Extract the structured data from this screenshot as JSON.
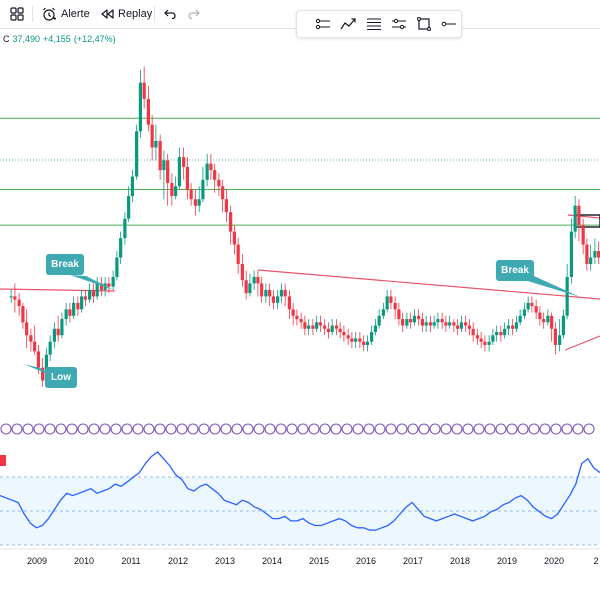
{
  "toolbar": {
    "grid_icon": "grid-icon",
    "alert_label": "Alerte",
    "replay_label": "Replay"
  },
  "drawing_tools": [
    {
      "name": "horizontal-ray-tool-icon"
    },
    {
      "name": "trend-tool-icon"
    },
    {
      "name": "fib-retracement-tool-icon"
    },
    {
      "name": "parallel-channel-tool-icon"
    },
    {
      "name": "rectangle-tool-icon"
    },
    {
      "name": "ray-line-tool-icon"
    }
  ],
  "price": {
    "label": "C",
    "close": "37,490",
    "change": "+4,155",
    "change_pct": "(+12,47%)"
  },
  "annotations": {
    "break_1": "Break",
    "low": "Low",
    "break_2": "Break"
  },
  "x_axis": {
    "labels": [
      "2009",
      "2010",
      "2011",
      "2012",
      "2013",
      "2014",
      "2015",
      "2016",
      "2017",
      "2018",
      "2019",
      "2020",
      "2"
    ]
  },
  "colors": {
    "up": "#089981",
    "down": "#f23645",
    "horizontal_lines": "#4caf50",
    "trendline": "#e8546a",
    "callout": "#3fa9b1",
    "oscillator": "#2962ff",
    "band": "#e3f2fd",
    "divider": "#7e57c2"
  },
  "chart_data": {
    "type": "candlestick",
    "x_range": [
      2008.4,
      2021.2
    ],
    "candles": [
      [
        2008.45,
        62,
        62,
        60,
        64
      ],
      [
        2008.53,
        62,
        61,
        57,
        66
      ],
      [
        2008.62,
        61,
        59,
        56,
        63
      ],
      [
        2008.7,
        59,
        54,
        52,
        60
      ],
      [
        2008.78,
        54,
        50,
        46,
        58
      ],
      [
        2008.87,
        50,
        48,
        45,
        52
      ],
      [
        2008.95,
        48,
        45,
        44,
        53
      ],
      [
        2009.03,
        45,
        40,
        38,
        47
      ],
      [
        2009.12,
        40,
        36,
        34,
        43
      ],
      [
        2009.2,
        36,
        44,
        35,
        46
      ],
      [
        2009.28,
        44,
        48,
        42,
        50
      ],
      [
        2009.37,
        48,
        52,
        46,
        54
      ],
      [
        2009.45,
        52,
        50,
        48,
        56
      ],
      [
        2009.53,
        50,
        55,
        49,
        57
      ],
      [
        2009.62,
        55,
        58,
        53,
        60
      ],
      [
        2009.7,
        58,
        56,
        54,
        60
      ],
      [
        2009.78,
        56,
        60,
        55,
        62
      ],
      [
        2009.87,
        60,
        58,
        56,
        62
      ],
      [
        2009.95,
        58,
        62,
        57,
        64
      ],
      [
        2010.03,
        62,
        61,
        59,
        64
      ],
      [
        2010.12,
        61,
        64,
        60,
        66
      ],
      [
        2010.2,
        64,
        62,
        60,
        66
      ],
      [
        2010.28,
        62,
        66,
        61,
        68
      ],
      [
        2010.37,
        66,
        64,
        62,
        68
      ],
      [
        2010.45,
        64,
        66,
        62,
        68
      ],
      [
        2010.53,
        66,
        65,
        63,
        68
      ],
      [
        2010.62,
        65,
        68,
        64,
        70
      ],
      [
        2010.7,
        68,
        74,
        67,
        76
      ],
      [
        2010.78,
        74,
        80,
        72,
        82
      ],
      [
        2010.87,
        80,
        86,
        78,
        88
      ],
      [
        2010.95,
        86,
        93,
        85,
        96
      ],
      [
        2011.03,
        93,
        99,
        91,
        101
      ],
      [
        2011.12,
        99,
        113,
        98,
        115
      ],
      [
        2011.2,
        113,
        128,
        111,
        132
      ],
      [
        2011.28,
        128,
        123,
        120,
        133
      ],
      [
        2011.37,
        123,
        115,
        113,
        127
      ],
      [
        2011.45,
        115,
        108,
        104,
        118
      ],
      [
        2011.53,
        108,
        110,
        104,
        115
      ],
      [
        2011.62,
        110,
        101,
        98,
        112
      ],
      [
        2011.7,
        101,
        104,
        92,
        107
      ],
      [
        2011.78,
        104,
        97,
        90,
        106
      ],
      [
        2011.87,
        97,
        93,
        90,
        100
      ],
      [
        2011.95,
        93,
        96,
        92,
        99
      ],
      [
        2012.03,
        96,
        105,
        95,
        108
      ],
      [
        2012.12,
        105,
        102,
        98,
        108
      ],
      [
        2012.2,
        102,
        95,
        92,
        105
      ],
      [
        2012.28,
        95,
        92,
        90,
        97
      ],
      [
        2012.37,
        92,
        90,
        87,
        95
      ],
      [
        2012.45,
        90,
        92,
        88,
        96
      ],
      [
        2012.53,
        92,
        98,
        91,
        102
      ],
      [
        2012.62,
        98,
        103,
        96,
        106
      ],
      [
        2012.7,
        103,
        101,
        98,
        106
      ],
      [
        2012.78,
        101,
        98,
        94,
        103
      ],
      [
        2012.87,
        98,
        96,
        93,
        100
      ],
      [
        2012.95,
        96,
        92,
        88,
        98
      ],
      [
        2013.03,
        92,
        88,
        85,
        95
      ],
      [
        2013.12,
        88,
        82,
        78,
        90
      ],
      [
        2013.2,
        82,
        78,
        75,
        84
      ],
      [
        2013.28,
        78,
        72,
        69,
        80
      ],
      [
        2013.37,
        72,
        67,
        65,
        75
      ],
      [
        2013.45,
        67,
        63,
        61,
        70
      ],
      [
        2013.53,
        63,
        66,
        62,
        69
      ],
      [
        2013.62,
        66,
        68,
        64,
        70
      ],
      [
        2013.7,
        68,
        66,
        62,
        70
      ],
      [
        2013.78,
        66,
        62,
        60,
        68
      ],
      [
        2013.87,
        62,
        64,
        60,
        66
      ],
      [
        2013.95,
        64,
        62,
        59,
        66
      ],
      [
        2014.03,
        62,
        60,
        58,
        64
      ],
      [
        2014.12,
        60,
        62,
        58,
        64
      ],
      [
        2014.2,
        62,
        64,
        60,
        66
      ],
      [
        2014.28,
        64,
        62,
        59,
        66
      ],
      [
        2014.37,
        62,
        58,
        55,
        64
      ],
      [
        2014.45,
        58,
        56,
        53,
        60
      ],
      [
        2014.53,
        56,
        55,
        53,
        58
      ],
      [
        2014.62,
        55,
        54,
        52,
        57
      ],
      [
        2014.7,
        54,
        52,
        50,
        56
      ],
      [
        2014.78,
        52,
        53,
        50,
        55
      ],
      [
        2014.87,
        53,
        52,
        50,
        55
      ],
      [
        2014.95,
        52,
        54,
        51,
        56
      ],
      [
        2015.03,
        54,
        53,
        51,
        56
      ],
      [
        2015.12,
        53,
        52,
        50,
        55
      ],
      [
        2015.2,
        52,
        51,
        49,
        54
      ],
      [
        2015.28,
        51,
        53,
        50,
        55
      ],
      [
        2015.37,
        53,
        52,
        50,
        55
      ],
      [
        2015.45,
        52,
        51,
        49,
        54
      ],
      [
        2015.53,
        51,
        50,
        48,
        53
      ],
      [
        2015.62,
        50,
        49,
        47,
        52
      ],
      [
        2015.7,
        49,
        48,
        46,
        51
      ],
      [
        2015.78,
        48,
        49,
        46,
        51
      ],
      [
        2015.87,
        49,
        48,
        46,
        51
      ],
      [
        2015.95,
        48,
        47,
        45,
        50
      ],
      [
        2016.03,
        47,
        48,
        45,
        50
      ],
      [
        2016.12,
        48,
        51,
        47,
        53
      ],
      [
        2016.2,
        51,
        53,
        50,
        55
      ],
      [
        2016.28,
        53,
        56,
        52,
        58
      ],
      [
        2016.37,
        56,
        58,
        55,
        60
      ],
      [
        2016.45,
        58,
        62,
        57,
        64
      ],
      [
        2016.53,
        62,
        60,
        58,
        64
      ],
      [
        2016.62,
        60,
        58,
        55,
        62
      ],
      [
        2016.7,
        58,
        55,
        53,
        60
      ],
      [
        2016.78,
        55,
        53,
        51,
        57
      ],
      [
        2016.87,
        53,
        55,
        52,
        57
      ],
      [
        2016.95,
        55,
        54,
        52,
        57
      ],
      [
        2017.03,
        54,
        56,
        53,
        58
      ],
      [
        2017.12,
        56,
        55,
        53,
        58
      ],
      [
        2017.2,
        55,
        53,
        51,
        57
      ],
      [
        2017.28,
        53,
        54,
        51,
        56
      ],
      [
        2017.37,
        54,
        53,
        51,
        56
      ],
      [
        2017.45,
        53,
        54,
        52,
        56
      ],
      [
        2017.53,
        54,
        55,
        52,
        57
      ],
      [
        2017.62,
        55,
        54,
        52,
        57
      ],
      [
        2017.7,
        54,
        53,
        51,
        56
      ],
      [
        2017.78,
        53,
        54,
        52,
        56
      ],
      [
        2017.87,
        54,
        53,
        51,
        55
      ],
      [
        2017.95,
        53,
        52,
        50,
        55
      ],
      [
        2018.03,
        52,
        54,
        51,
        56
      ],
      [
        2018.12,
        54,
        53,
        51,
        56
      ],
      [
        2018.2,
        53,
        52,
        50,
        55
      ],
      [
        2018.28,
        52,
        50,
        48,
        54
      ],
      [
        2018.37,
        50,
        49,
        47,
        52
      ],
      [
        2018.45,
        49,
        48,
        46,
        51
      ],
      [
        2018.53,
        48,
        47,
        45,
        50
      ],
      [
        2018.62,
        47,
        48,
        45,
        50
      ],
      [
        2018.7,
        48,
        50,
        47,
        52
      ],
      [
        2018.78,
        50,
        51,
        48,
        53
      ],
      [
        2018.87,
        51,
        50,
        48,
        53
      ],
      [
        2018.95,
        50,
        52,
        49,
        54
      ],
      [
        2019.03,
        52,
        53,
        50,
        55
      ],
      [
        2019.12,
        53,
        52,
        50,
        55
      ],
      [
        2019.2,
        52,
        54,
        51,
        56
      ],
      [
        2019.28,
        54,
        56,
        53,
        58
      ],
      [
        2019.37,
        56,
        58,
        55,
        60
      ],
      [
        2019.45,
        58,
        60,
        57,
        62
      ],
      [
        2019.53,
        60,
        59,
        57,
        62
      ],
      [
        2019.62,
        59,
        57,
        55,
        61
      ],
      [
        2019.7,
        57,
        55,
        53,
        59
      ],
      [
        2019.78,
        55,
        54,
        52,
        57
      ],
      [
        2019.87,
        54,
        56,
        53,
        58
      ],
      [
        2019.95,
        56,
        52,
        48,
        57
      ],
      [
        2020.03,
        52,
        47,
        44,
        54
      ],
      [
        2020.12,
        47,
        50,
        45,
        55
      ],
      [
        2020.2,
        50,
        56,
        49,
        58
      ],
      [
        2020.28,
        56,
        68,
        55,
        72
      ],
      [
        2020.37,
        68,
        82,
        66,
        86
      ],
      [
        2020.45,
        82,
        90,
        80,
        93
      ],
      [
        2020.53,
        90,
        84,
        79,
        92
      ],
      [
        2020.62,
        84,
        78,
        75,
        86
      ],
      [
        2020.7,
        78,
        72,
        70,
        80
      ],
      [
        2020.78,
        72,
        74,
        70,
        78
      ],
      [
        2020.87,
        74,
        76,
        72,
        80
      ],
      [
        2020.95,
        76,
        74,
        72,
        79
      ]
    ],
    "horizontal_levels": [
      117,
      95,
      84
    ],
    "annotations": [
      "Break",
      "Low",
      "Break"
    ],
    "oscillator": {
      "type": "line",
      "values": [
        56,
        54,
        52,
        50,
        40,
        32,
        28,
        30,
        36,
        44,
        52,
        58,
        56,
        58,
        60,
        62,
        58,
        60,
        62,
        66,
        64,
        68,
        72,
        76,
        84,
        90,
        94,
        88,
        82,
        74,
        70,
        62,
        60,
        64,
        66,
        62,
        58,
        52,
        50,
        48,
        52,
        50,
        46,
        44,
        40,
        36,
        36,
        38,
        34,
        34,
        36,
        32,
        30,
        30,
        32,
        34,
        36,
        34,
        30,
        28,
        28,
        26,
        26,
        28,
        30,
        34,
        40,
        46,
        50,
        44,
        38,
        36,
        34,
        36,
        38,
        40,
        38,
        36,
        34,
        36,
        38,
        42,
        44,
        48,
        50,
        54,
        56,
        52,
        46,
        42,
        38,
        36,
        40,
        48,
        56,
        66,
        84,
        88,
        80,
        76
      ],
      "band": [
        30,
        70
      ]
    }
  }
}
